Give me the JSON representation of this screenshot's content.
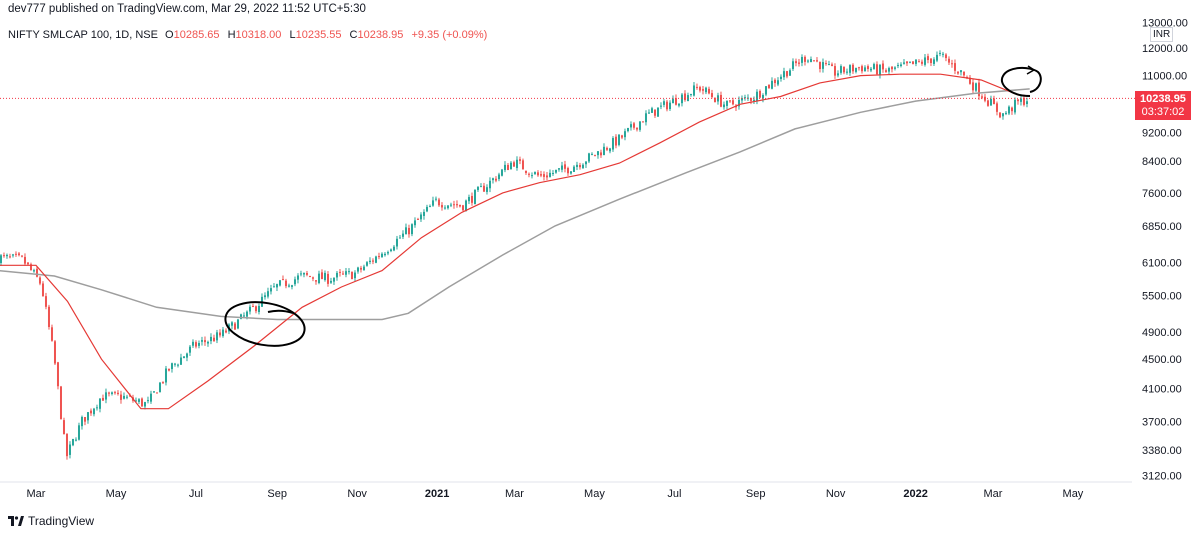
{
  "header": {
    "publish_line": "dev777 published on TradingView.com, Mar 29, 2022 11:52 UTC+5:30"
  },
  "legend": {
    "symbol": "NIFTY SMLCAP 100, 1D, NSE",
    "open_label": "O",
    "open": "10285.65",
    "high_label": "H",
    "high": "10318.00",
    "low_label": "L",
    "low": "10235.55",
    "close_label": "C",
    "close": "10238.95",
    "change": "+9.35 (+0.09%)"
  },
  "currency_label": "INR",
  "last_price": {
    "price": "10238.95",
    "countdown": "03:37:02"
  },
  "footer": {
    "brand": "TradingView"
  },
  "colors": {
    "up": "#26a69a",
    "down": "#ef5350",
    "ma_fast": "#e53935",
    "ma_slow": "#9e9e9e",
    "annotation": "#000000",
    "price_line": "#f23645"
  },
  "chart_data": {
    "type": "line",
    "y_tick_labels": [
      "13000.00",
      "12000.00",
      "11000.00",
      "10238.95",
      "9200.00",
      "8400.00",
      "7600.00",
      "6850.00",
      "6100.00",
      "5500.00",
      "4900.00",
      "4500.00",
      "4100.00",
      "3700.00",
      "3380.00",
      "3120.00"
    ],
    "x_tick_labels": [
      "Mar",
      "May",
      "Jul",
      "Sep",
      "Nov",
      "2021",
      "Mar",
      "May",
      "Jul",
      "Sep",
      "Nov",
      "2022",
      "Mar",
      "May"
    ],
    "x_tick_dates": [
      "2020-03",
      "2020-05",
      "2020-07",
      "2020-09",
      "2020-11",
      "2021-01",
      "2021-03",
      "2021-05",
      "2021-07",
      "2021-09",
      "2021-11",
      "2022-01",
      "2022-03",
      "2022-05"
    ],
    "y_scale": "log",
    "ylim": [
      3000,
      13500
    ],
    "price_closes": [
      [
        "2020-02-01",
        6200
      ],
      [
        "2020-02-20",
        6150
      ],
      [
        "2020-03-05",
        5700
      ],
      [
        "2020-03-15",
        4500
      ],
      [
        "2020-03-24",
        3300
      ],
      [
        "2020-04-05",
        3700
      ],
      [
        "2020-04-20",
        4000
      ],
      [
        "2020-05-05",
        4000
      ],
      [
        "2020-05-25",
        3900
      ],
      [
        "2020-06-10",
        4350
      ],
      [
        "2020-06-30",
        4700
      ],
      [
        "2020-07-20",
        4850
      ],
      [
        "2020-08-10",
        5200
      ],
      [
        "2020-08-31",
        5650
      ],
      [
        "2020-09-20",
        5850
      ],
      [
        "2020-10-10",
        5800
      ],
      [
        "2020-10-31",
        5900
      ],
      [
        "2020-11-20",
        6300
      ],
      [
        "2020-12-10",
        6750
      ],
      [
        "2020-12-31",
        7400
      ],
      [
        "2021-01-20",
        7300
      ],
      [
        "2021-02-10",
        7850
      ],
      [
        "2021-02-28",
        8400
      ],
      [
        "2021-03-20",
        8000
      ],
      [
        "2021-04-10",
        8200
      ],
      [
        "2021-04-30",
        8550
      ],
      [
        "2021-05-20",
        9000
      ],
      [
        "2021-06-10",
        9700
      ],
      [
        "2021-06-30",
        10150
      ],
      [
        "2021-07-20",
        10600
      ],
      [
        "2021-08-10",
        10000
      ],
      [
        "2021-08-31",
        10300
      ],
      [
        "2021-09-20",
        11000
      ],
      [
        "2021-10-10",
        11700
      ],
      [
        "2021-10-31",
        11100
      ],
      [
        "2021-11-20",
        11300
      ],
      [
        "2021-12-10",
        11150
      ],
      [
        "2021-12-31",
        11400
      ],
      [
        "2022-01-20",
        11700
      ],
      [
        "2022-02-05",
        11100
      ],
      [
        "2022-02-20",
        10400
      ],
      [
        "2022-03-08",
        9700
      ],
      [
        "2022-03-20",
        10100
      ],
      [
        "2022-03-29",
        10238.95
      ]
    ],
    "series": [
      {
        "values": [
          [
            "2020-02-01",
            6050
          ],
          [
            "2020-03-01",
            6050
          ],
          [
            "2020-03-25",
            5400
          ],
          [
            "2020-04-20",
            4500
          ],
          [
            "2020-05-20",
            3850
          ],
          [
            "2020-06-10",
            3850
          ],
          [
            "2020-07-10",
            4200
          ],
          [
            "2020-08-15",
            4700
          ],
          [
            "2020-09-20",
            5300
          ],
          [
            "2020-10-20",
            5650
          ],
          [
            "2020-11-20",
            5950
          ],
          [
            "2020-12-20",
            6600
          ],
          [
            "2021-01-20",
            7150
          ],
          [
            "2021-02-20",
            7600
          ],
          [
            "2021-03-20",
            7850
          ],
          [
            "2021-04-20",
            8050
          ],
          [
            "2021-05-20",
            8350
          ],
          [
            "2021-06-20",
            8900
          ],
          [
            "2021-07-20",
            9500
          ],
          [
            "2021-08-20",
            10050
          ],
          [
            "2021-09-20",
            10300
          ],
          [
            "2021-10-20",
            10750
          ],
          [
            "2021-11-20",
            11000
          ],
          [
            "2021-12-20",
            11050
          ],
          [
            "2022-01-20",
            11050
          ],
          [
            "2022-02-20",
            10850
          ],
          [
            "2022-03-20",
            10350
          ],
          [
            "2022-03-29",
            10300
          ]
        ]
      },
      {
        "values": [
          [
            "2020-02-01",
            5950
          ],
          [
            "2020-03-15",
            5850
          ],
          [
            "2020-04-20",
            5600
          ],
          [
            "2020-06-01",
            5300
          ],
          [
            "2020-07-20",
            5150
          ],
          [
            "2020-09-01",
            5100
          ],
          [
            "2020-10-10",
            5100
          ],
          [
            "2020-11-20",
            5100
          ],
          [
            "2020-12-10",
            5200
          ],
          [
            "2021-01-10",
            5650
          ],
          [
            "2021-02-20",
            6250
          ],
          [
            "2021-04-01",
            6850
          ],
          [
            "2021-05-20",
            7450
          ],
          [
            "2021-07-10",
            8100
          ],
          [
            "2021-08-20",
            8650
          ],
          [
            "2021-10-01",
            9300
          ],
          [
            "2021-11-20",
            9800
          ],
          [
            "2022-01-01",
            10150
          ],
          [
            "2022-02-15",
            10400
          ],
          [
            "2022-03-29",
            10550
          ]
        ]
      }
    ]
  }
}
